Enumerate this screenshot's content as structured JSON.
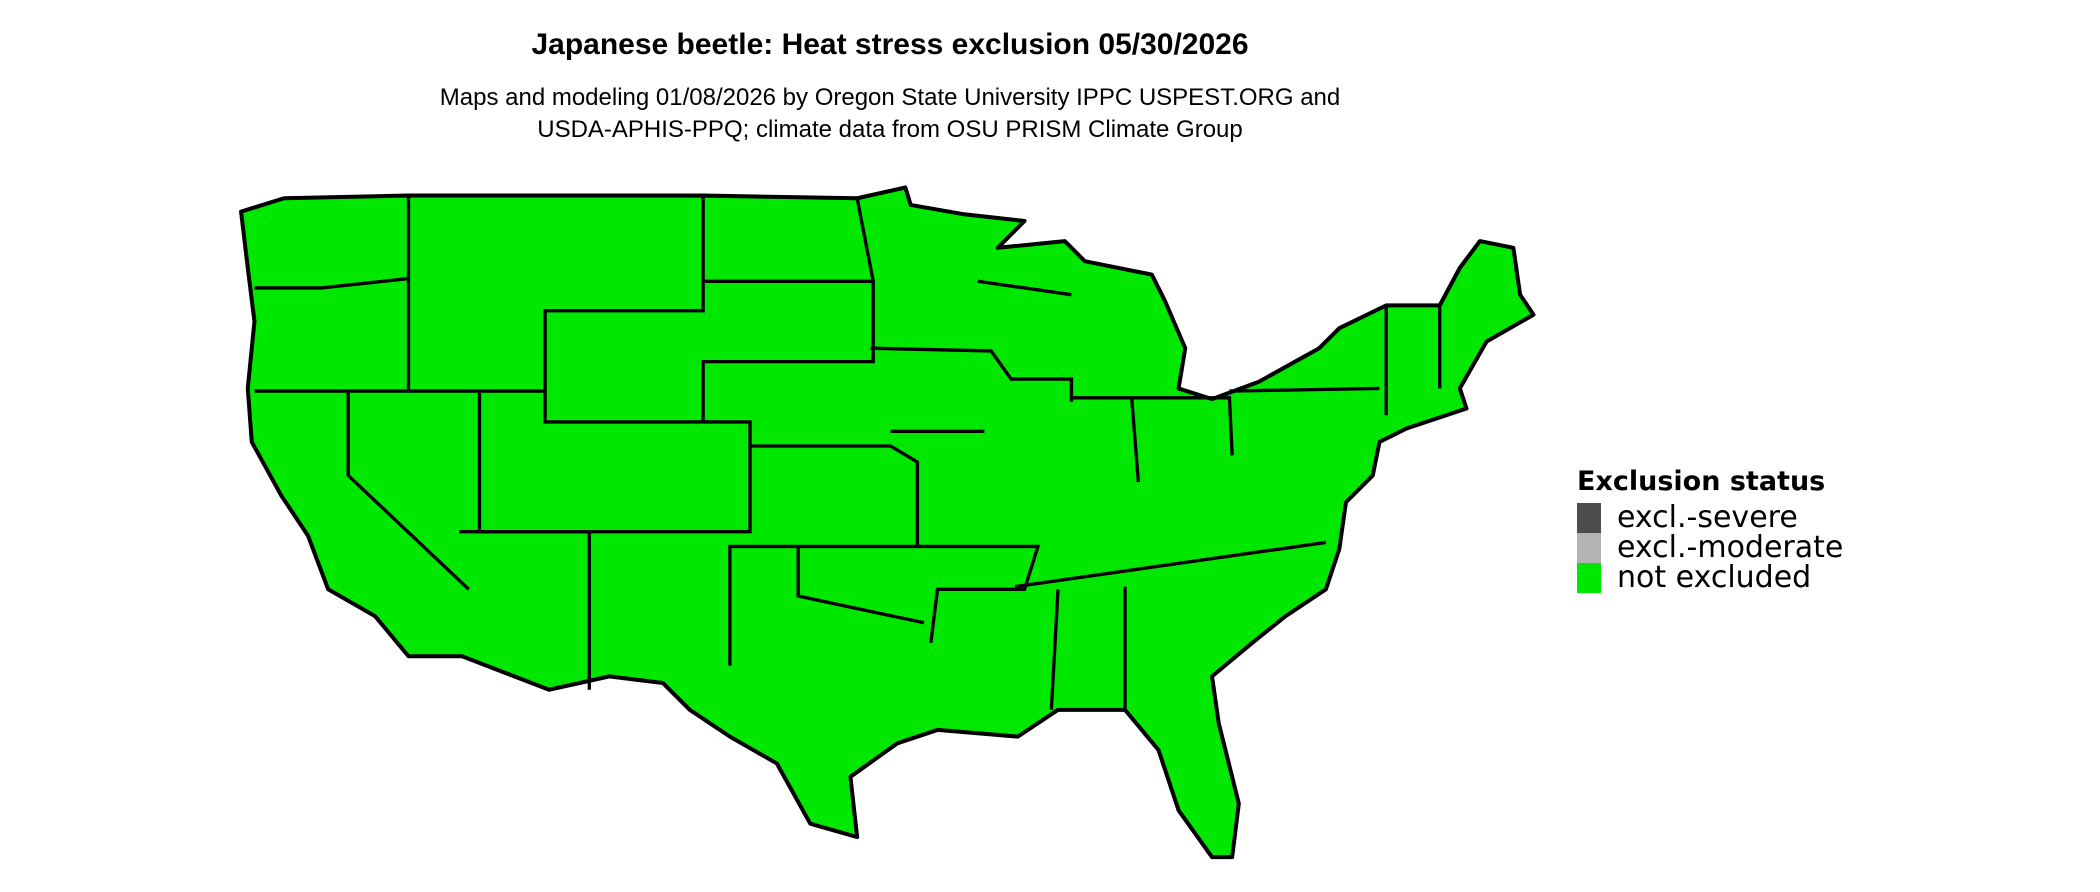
{
  "title": "Japanese beetle: Heat stress exclusion 05/30/2026",
  "subtitle_line1": "Maps and modeling 01/08/2026 by Oregon State University IPPC USPEST.ORG and",
  "subtitle_line2": "USDA-APHIS-PPQ; climate data from OSU PRISM Climate Group",
  "map": {
    "region": "Contiguous United States",
    "fill_status": "not excluded",
    "fill_color": "#00e800",
    "border_color": "#000000"
  },
  "legend": {
    "title": "Exclusion status",
    "items": [
      {
        "label": "excl.-severe",
        "color": "#4d4d4d"
      },
      {
        "label": "excl.-moderate",
        "color": "#b3b3b3"
      },
      {
        "label": "not excluded",
        "color": "#00e800"
      }
    ]
  }
}
